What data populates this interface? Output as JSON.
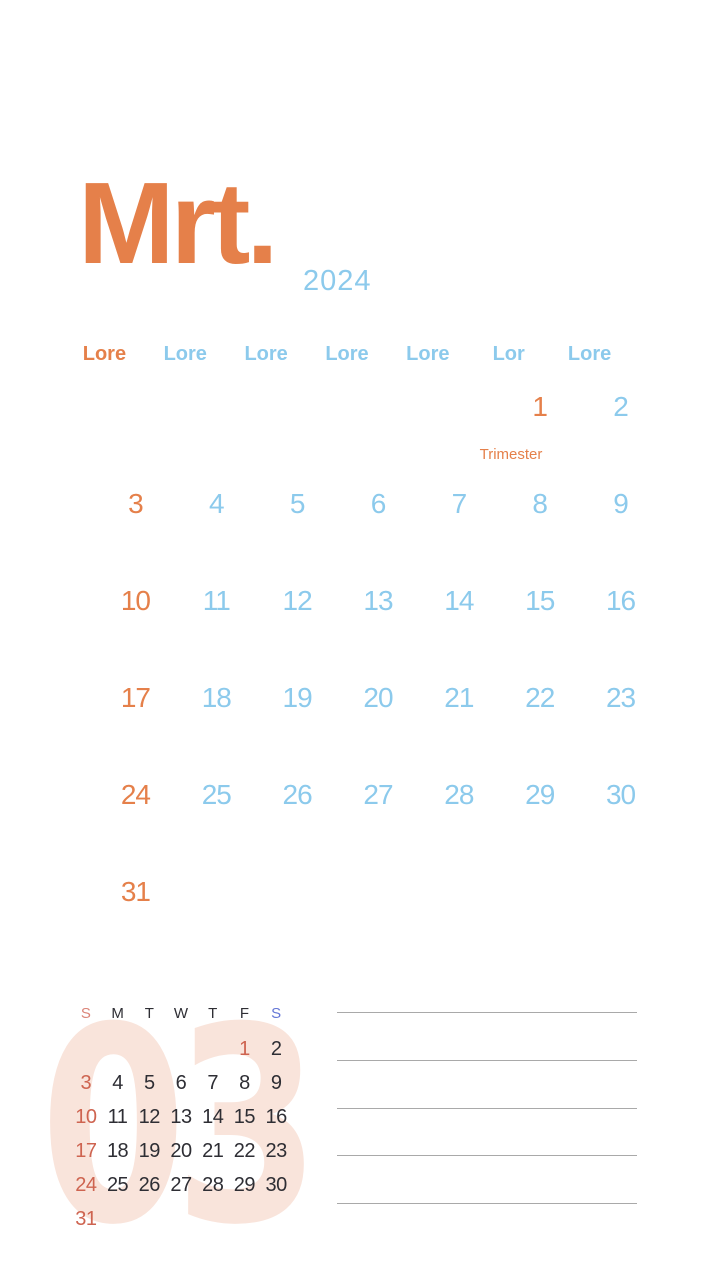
{
  "title": {
    "month_abbr": "Mrt.",
    "year": "2024"
  },
  "main_calendar": {
    "day_headers": [
      "Lore",
      "Lore",
      "Lore",
      "Lore",
      "Lore",
      "Lor",
      "Lore"
    ],
    "weeks": [
      [
        "",
        "",
        "",
        "",
        "",
        "1",
        "2"
      ],
      [
        "3",
        "4",
        "5",
        "6",
        "7",
        "8",
        "9"
      ],
      [
        "10",
        "11",
        "12",
        "13",
        "14",
        "15",
        "16"
      ],
      [
        "17",
        "18",
        "19",
        "20",
        "21",
        "22",
        "23"
      ],
      [
        "24",
        "25",
        "26",
        "27",
        "28",
        "29",
        "30"
      ],
      [
        "31",
        "",
        "",
        "",
        "",
        "",
        ""
      ]
    ],
    "annotation": {
      "text": "Trimester",
      "attached_to_day": "1"
    }
  },
  "mini_calendar": {
    "day_headers": [
      "S",
      "M",
      "T",
      "W",
      "T",
      "F",
      "S"
    ],
    "weeks": [
      [
        "",
        "",
        "",
        "",
        "",
        "1",
        "2"
      ],
      [
        "3",
        "4",
        "5",
        "6",
        "7",
        "8",
        "9"
      ],
      [
        "10",
        "11",
        "12",
        "13",
        "14",
        "15",
        "16"
      ],
      [
        "17",
        "18",
        "19",
        "20",
        "21",
        "22",
        "23"
      ],
      [
        "24",
        "25",
        "26",
        "27",
        "28",
        "29",
        "30"
      ],
      [
        "31",
        "",
        "",
        "",
        "",
        "",
        ""
      ]
    ]
  },
  "watermark": "03",
  "notes": {
    "line_count": 5
  },
  "colors": {
    "accent_orange": "#E5804A",
    "accent_blue": "#8CCAEC",
    "mini_red": "#CE6450",
    "mini_dark": "#2E2E34",
    "mini_header_sunday": "#DB8478",
    "mini_header_saturday": "#6476D6",
    "mini_header_dark": "#2E2E34",
    "watermark_pink": "#F9E4DB",
    "notes_line_gray": "#A9A9A9"
  }
}
